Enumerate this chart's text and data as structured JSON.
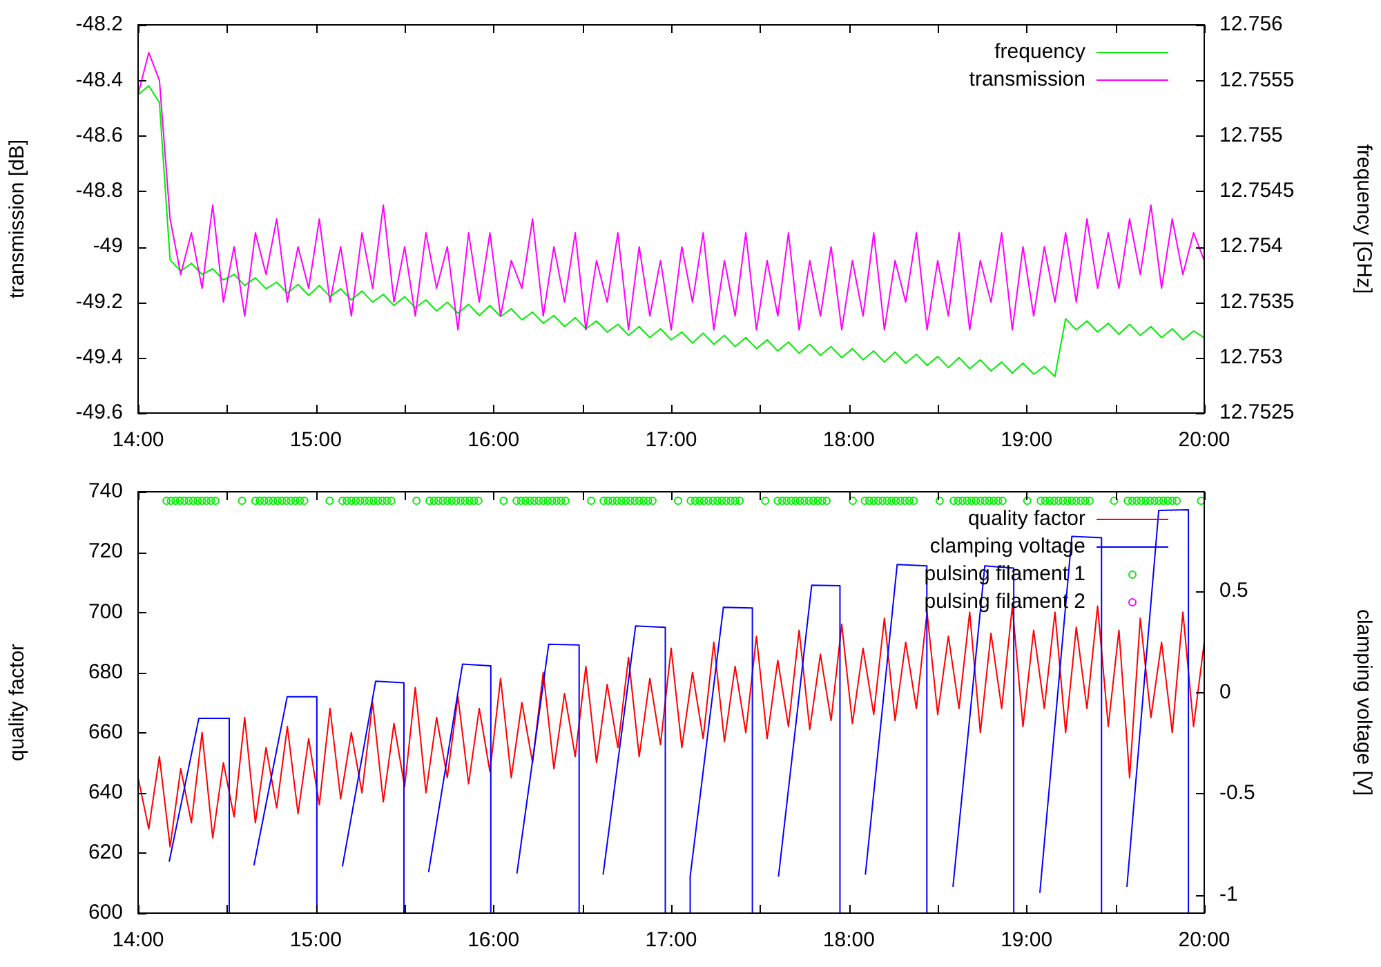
{
  "chart_data": [
    {
      "type": "line",
      "ylabel": "transmission [dB]",
      "y2label": "frequency [GHz]",
      "legend": "top right",
      "x": [
        14,
        14.06,
        14.12,
        14.18,
        14.24,
        14.3,
        14.36,
        14.42,
        14.48,
        14.54,
        14.6,
        14.66,
        14.72,
        14.78,
        14.84,
        14.9,
        14.96,
        15.02,
        15.08,
        15.14,
        15.2,
        15.26,
        15.32,
        15.38,
        15.44,
        15.5,
        15.56,
        15.62,
        15.68,
        15.74,
        15.8,
        15.86,
        15.92,
        15.98,
        16.04,
        16.1,
        16.16,
        16.22,
        16.28,
        16.34,
        16.4,
        16.46,
        16.52,
        16.58,
        16.64,
        16.7,
        16.76,
        16.82,
        16.88,
        16.94,
        17,
        17.06,
        17.12,
        17.18,
        17.24,
        17.3,
        17.36,
        17.42,
        17.48,
        17.54,
        17.6,
        17.66,
        17.72,
        17.78,
        17.84,
        17.9,
        17.96,
        18.02,
        18.08,
        18.14,
        18.2,
        18.26,
        18.32,
        18.38,
        18.44,
        18.5,
        18.56,
        18.62,
        18.68,
        18.74,
        18.8,
        18.86,
        18.92,
        18.98,
        19.04,
        19.1,
        19.16,
        19.22,
        19.28,
        19.34,
        19.4,
        19.46,
        19.52,
        19.58,
        19.64,
        19.7,
        19.76,
        19.82,
        19.88,
        19.94,
        20
      ],
      "series": [
        {
          "name": "frequency",
          "color": "#00ee00",
          "axis": "y2",
          "values": [
            12.75537,
            12.75545,
            12.7553,
            12.75388,
            12.75378,
            12.75385,
            12.75375,
            12.7538,
            12.7537,
            12.75375,
            12.75365,
            12.75372,
            12.75362,
            12.75368,
            12.75358,
            12.75366,
            12.75356,
            12.75365,
            12.75355,
            12.75362,
            12.75352,
            12.7536,
            12.7535,
            12.75357,
            12.75347,
            12.75355,
            12.75345,
            12.75352,
            12.75342,
            12.7535,
            12.7534,
            12.75348,
            12.75338,
            12.75347,
            12.75337,
            12.75344,
            12.75334,
            12.75341,
            12.75331,
            12.75338,
            12.75328,
            12.75336,
            12.75326,
            12.75333,
            12.75323,
            12.7533,
            12.7532,
            12.75328,
            12.75318,
            12.75326,
            12.75316,
            12.75323,
            12.75313,
            12.75322,
            12.75312,
            12.7532,
            12.7531,
            12.75318,
            12.75308,
            12.75316,
            12.75306,
            12.75314,
            12.75304,
            12.75312,
            12.75302,
            12.7531,
            12.753,
            12.75308,
            12.75298,
            12.75306,
            12.75296,
            12.75305,
            12.75295,
            12.75303,
            12.75293,
            12.75301,
            12.75291,
            12.753,
            12.7529,
            12.75298,
            12.75288,
            12.75296,
            12.75286,
            12.75295,
            12.75285,
            12.75292,
            12.75283,
            12.75335,
            12.75325,
            12.75333,
            12.75323,
            12.75331,
            12.75321,
            12.7533,
            12.7532,
            12.75328,
            12.75318,
            12.75326,
            12.75316,
            12.75324,
            12.75318
          ]
        },
        {
          "name": "transmission",
          "color": "#ff00ff",
          "values": [
            -48.45,
            -48.3,
            -48.4,
            -48.9,
            -49.1,
            -48.95,
            -49.15,
            -48.85,
            -49.2,
            -49.0,
            -49.25,
            -48.95,
            -49.1,
            -48.9,
            -49.2,
            -49.0,
            -49.15,
            -48.9,
            -49.2,
            -49.0,
            -49.25,
            -48.95,
            -49.15,
            -48.85,
            -49.2,
            -49.0,
            -49.25,
            -48.95,
            -49.15,
            -49.0,
            -49.3,
            -48.95,
            -49.2,
            -48.95,
            -49.25,
            -49.05,
            -49.15,
            -48.9,
            -49.25,
            -49.0,
            -49.2,
            -48.95,
            -49.3,
            -49.05,
            -49.2,
            -48.95,
            -49.3,
            -49.0,
            -49.25,
            -49.05,
            -49.3,
            -49.0,
            -49.2,
            -48.95,
            -49.3,
            -49.05,
            -49.25,
            -48.95,
            -49.3,
            -49.05,
            -49.25,
            -48.95,
            -49.3,
            -49.05,
            -49.25,
            -49.0,
            -49.3,
            -49.05,
            -49.25,
            -48.95,
            -49.3,
            -49.05,
            -49.2,
            -48.95,
            -49.3,
            -49.05,
            -49.25,
            -48.95,
            -49.3,
            -49.05,
            -49.2,
            -48.95,
            -49.3,
            -49.0,
            -49.25,
            -49.0,
            -49.2,
            -48.95,
            -49.2,
            -48.9,
            -49.15,
            -48.95,
            -49.15,
            -48.9,
            -49.1,
            -48.85,
            -49.15,
            -48.9,
            -49.1,
            -48.95,
            -49.05
          ]
        }
      ],
      "xlim": [
        14,
        20
      ],
      "xticks": [
        {
          "value": 14,
          "label": "14:00"
        },
        {
          "value": 14.5,
          "label": null
        },
        {
          "value": 15,
          "label": "15:00"
        },
        {
          "value": 15.5,
          "label": null
        },
        {
          "value": 16,
          "label": "16:00"
        },
        {
          "value": 16.5,
          "label": null
        },
        {
          "value": 17,
          "label": "17:00"
        },
        {
          "value": 17.5,
          "label": null
        },
        {
          "value": 18,
          "label": "18:00"
        },
        {
          "value": 18.5,
          "label": null
        },
        {
          "value": 19,
          "label": "19:00"
        },
        {
          "value": 19.5,
          "label": null
        },
        {
          "value": 20,
          "label": "20:00"
        }
      ],
      "ylim": [
        -49.6,
        -48.2
      ],
      "yticks": [
        -49.6,
        -49.4,
        -49.2,
        -49,
        -48.8,
        -48.6,
        -48.4,
        -48.2
      ],
      "y2lim": [
        12.7525,
        12.756
      ],
      "y2ticks": [
        12.7525,
        12.753,
        12.7535,
        12.754,
        12.7545,
        12.755,
        12.7555,
        12.756
      ]
    },
    {
      "type": "line",
      "ylabel": "quality factor",
      "y2label": "clamping voltage [V]",
      "legend": "top right",
      "x": [
        14,
        14.06,
        14.12,
        14.18,
        14.24,
        14.3,
        14.36,
        14.42,
        14.48,
        14.54,
        14.6,
        14.66,
        14.72,
        14.78,
        14.84,
        14.9,
        14.96,
        15.02,
        15.08,
        15.14,
        15.2,
        15.26,
        15.32,
        15.38,
        15.44,
        15.5,
        15.56,
        15.62,
        15.68,
        15.74,
        15.8,
        15.86,
        15.92,
        15.98,
        16.04,
        16.1,
        16.16,
        16.22,
        16.28,
        16.34,
        16.4,
        16.46,
        16.52,
        16.58,
        16.64,
        16.7,
        16.76,
        16.82,
        16.88,
        16.94,
        17,
        17.06,
        17.12,
        17.18,
        17.24,
        17.3,
        17.36,
        17.42,
        17.48,
        17.54,
        17.6,
        17.66,
        17.72,
        17.78,
        17.84,
        17.9,
        17.96,
        18.02,
        18.08,
        18.14,
        18.2,
        18.26,
        18.32,
        18.38,
        18.44,
        18.5,
        18.56,
        18.62,
        18.68,
        18.74,
        18.8,
        18.86,
        18.92,
        18.98,
        19.04,
        19.1,
        19.16,
        19.22,
        19.28,
        19.34,
        19.4,
        19.46,
        19.52,
        19.58,
        19.64,
        19.7,
        19.76,
        19.82,
        19.88,
        19.94,
        20
      ],
      "series": [
        {
          "name": "quality factor",
          "color": "#ff0000",
          "values": [
            645,
            628,
            652,
            622,
            648,
            630,
            660,
            625,
            650,
            632,
            665,
            630,
            655,
            635,
            662,
            633,
            658,
            636,
            668,
            638,
            660,
            640,
            670,
            637,
            663,
            642,
            675,
            640,
            665,
            645,
            672,
            643,
            668,
            647,
            678,
            645,
            670,
            650,
            680,
            648,
            673,
            652,
            682,
            650,
            676,
            655,
            685,
            652,
            678,
            656,
            688,
            655,
            680,
            658,
            690,
            657,
            682,
            660,
            692,
            658,
            684,
            662,
            694,
            661,
            686,
            664,
            696,
            663,
            688,
            666,
            698,
            664,
            690,
            668,
            700,
            666,
            692,
            668,
            700,
            660,
            693,
            668,
            702,
            662,
            694,
            668,
            700,
            660,
            695,
            668,
            702,
            662,
            694,
            645,
            698,
            665,
            690,
            660,
            700,
            662,
            690
          ]
        },
        {
          "name": "clamping voltage",
          "color": "#0000ff",
          "axis": "y2",
          "x": [
            14.175,
            14.342,
            14.513,
            14.513,
            14.52,
            14.652,
            14.839,
            15.006,
            15.006,
            15.01,
            15.15,
            15.337,
            15.496,
            15.496,
            15.5,
            15.635,
            15.826,
            15.985,
            15.985,
            15.99,
            16.132,
            16.311,
            16.482,
            16.482,
            16.49,
            16.617,
            16.8,
            16.967,
            16.967,
            16.97,
            17.107,
            17.107,
            17.294,
            17.457,
            17.457,
            17.46,
            17.604,
            17.791,
            17.95,
            17.95,
            17.96,
            18.093,
            18.272,
            18.439,
            18.439,
            18.44,
            18.586,
            18.765,
            18.928,
            18.928,
            18.93,
            19.075,
            19.255,
            19.422,
            19.422,
            19.43,
            19.565,
            19.744,
            19.911,
            19.911
          ],
          "values": [
            -0.836,
            -0.128,
            -0.128,
            -1.09,
            null,
            -0.854,
            -0.022,
            -0.022,
            -1.09,
            null,
            -0.86,
            0.055,
            0.047,
            -1.09,
            null,
            -0.887,
            0.139,
            0.131,
            -1.09,
            null,
            -0.894,
            0.237,
            0.234,
            -1.09,
            null,
            -0.9,
            0.328,
            0.321,
            -1.09,
            null,
            -1.09,
            -0.91,
            0.42,
            0.416,
            -1.09,
            null,
            -0.91,
            0.529,
            0.526,
            -1.09,
            null,
            -0.9,
            0.631,
            0.624,
            -1.09,
            null,
            -0.96,
            0.624,
            0.613,
            -1.09,
            null,
            -0.99,
            0.77,
            0.763,
            -1.09,
            null,
            -0.96,
            0.898,
            0.901,
            -1.09
          ]
        },
        {
          "name": "pulsing filament 1",
          "color": "#00ee00",
          "type": "scatter",
          "marker": "circle",
          "x": [
            14.16,
            14.185,
            14.21,
            14.235,
            14.26,
            14.285,
            14.31,
            14.335,
            14.36,
            14.385,
            14.41,
            14.435,
            14.585,
            14.66,
            14.685,
            14.71,
            14.735,
            14.76,
            14.785,
            14.81,
            14.835,
            14.86,
            14.885,
            14.91,
            14.935,
            15.078,
            15.15,
            15.175,
            15.2,
            15.225,
            15.25,
            15.275,
            15.3,
            15.325,
            15.35,
            15.375,
            15.4,
            15.425,
            15.567,
            15.64,
            15.665,
            15.69,
            15.715,
            15.74,
            15.765,
            15.79,
            15.815,
            15.84,
            15.865,
            15.89,
            15.915,
            16.057,
            16.13,
            16.155,
            16.18,
            16.205,
            16.23,
            16.255,
            16.28,
            16.305,
            16.33,
            16.355,
            16.38,
            16.405,
            16.55,
            16.62,
            16.645,
            16.67,
            16.695,
            16.72,
            16.745,
            16.77,
            16.795,
            16.82,
            16.845,
            16.87,
            16.895,
            17.039,
            17.11,
            17.135,
            17.16,
            17.185,
            17.21,
            17.235,
            17.26,
            17.285,
            17.31,
            17.335,
            17.36,
            17.385,
            17.529,
            17.6,
            17.625,
            17.65,
            17.675,
            17.7,
            17.725,
            17.75,
            17.775,
            17.8,
            17.825,
            17.85,
            17.875,
            18.022,
            18.09,
            18.115,
            18.14,
            18.165,
            18.19,
            18.215,
            18.24,
            18.265,
            18.29,
            18.315,
            18.34,
            18.365,
            18.511,
            18.59,
            18.615,
            18.64,
            18.665,
            18.69,
            18.715,
            18.74,
            18.765,
            18.79,
            18.815,
            18.84,
            18.865,
            19.004,
            19.08,
            19.105,
            19.13,
            19.155,
            19.18,
            19.205,
            19.23,
            19.255,
            19.28,
            19.305,
            19.33,
            19.355,
            19.493,
            19.57,
            19.595,
            19.62,
            19.645,
            19.67,
            19.695,
            19.72,
            19.745,
            19.77,
            19.795,
            19.82,
            19.845,
            19.982
          ],
          "values": [
            737,
            737,
            737,
            737,
            737,
            737,
            737,
            737,
            737,
            737,
            737,
            737,
            737,
            737,
            737,
            737,
            737,
            737,
            737,
            737,
            737,
            737,
            737,
            737,
            737,
            737,
            737,
            737,
            737,
            737,
            737,
            737,
            737,
            737,
            737,
            737,
            737,
            737,
            737,
            737,
            737,
            737,
            737,
            737,
            737,
            737,
            737,
            737,
            737,
            737,
            737,
            737,
            737,
            737,
            737,
            737,
            737,
            737,
            737,
            737,
            737,
            737,
            737,
            737,
            737,
            737,
            737,
            737,
            737,
            737,
            737,
            737,
            737,
            737,
            737,
            737,
            737,
            737,
            737,
            737,
            737,
            737,
            737,
            737,
            737,
            737,
            737,
            737,
            737,
            737,
            737,
            737,
            737,
            737,
            737,
            737,
            737,
            737,
            737,
            737,
            737,
            737,
            737,
            737,
            737,
            737,
            737,
            737,
            737,
            737,
            737,
            737,
            737,
            737,
            737,
            737,
            737,
            737,
            737,
            737,
            737,
            737,
            737,
            737,
            737,
            737,
            737,
            737,
            737,
            737,
            737,
            737,
            737,
            737,
            737,
            737,
            737,
            737,
            737,
            737,
            737,
            737,
            737,
            737,
            737,
            737,
            737,
            737,
            737,
            737,
            737,
            737,
            737,
            737,
            737,
            737
          ]
        },
        {
          "name": "pulsing filament 2",
          "color": "#ff00ff",
          "type": "scatter",
          "marker": "circle",
          "values": [
            null,
            null,
            null,
            null,
            null,
            null,
            null,
            null,
            null,
            null,
            null,
            null,
            null,
            null,
            null,
            null,
            null,
            null,
            null,
            null,
            null,
            null,
            null,
            null,
            null,
            null,
            null,
            null,
            null,
            null,
            null,
            null,
            null,
            null,
            null,
            null,
            null,
            null,
            null,
            null,
            null,
            null,
            null,
            null,
            null,
            null,
            null,
            null,
            null,
            null,
            null,
            null,
            null,
            null,
            null,
            null,
            null,
            null,
            null,
            null,
            null,
            null,
            null,
            null,
            null,
            null,
            null,
            null,
            null,
            null,
            null,
            null,
            null,
            null,
            null,
            null,
            null,
            null,
            null,
            null,
            null,
            null,
            null,
            null,
            null,
            null,
            null,
            null,
            null,
            null,
            null,
            null,
            null,
            null,
            null,
            null,
            null,
            null,
            null,
            null,
            null
          ]
        }
      ],
      "xlim": [
        14,
        20
      ],
      "xticks": [
        {
          "value": 14,
          "label": "14:00"
        },
        {
          "value": 14.5,
          "label": null
        },
        {
          "value": 15,
          "label": "15:00"
        },
        {
          "value": 15.5,
          "label": null
        },
        {
          "value": 16,
          "label": "16:00"
        },
        {
          "value": 16.5,
          "label": null
        },
        {
          "value": 17,
          "label": "17:00"
        },
        {
          "value": 17.5,
          "label": null
        },
        {
          "value": 18,
          "label": "18:00"
        },
        {
          "value": 18.5,
          "label": null
        },
        {
          "value": 19,
          "label": "19:00"
        },
        {
          "value": 19.5,
          "label": null
        },
        {
          "value": 20,
          "label": "20:00"
        }
      ],
      "ylim": [
        600,
        740
      ],
      "yticks": [
        600,
        620,
        640,
        660,
        680,
        700,
        720,
        740
      ],
      "y2lim": [
        -1.09,
        0.99
      ],
      "y2ticks": [
        -1,
        -0.5,
        0,
        0.5
      ]
    }
  ]
}
